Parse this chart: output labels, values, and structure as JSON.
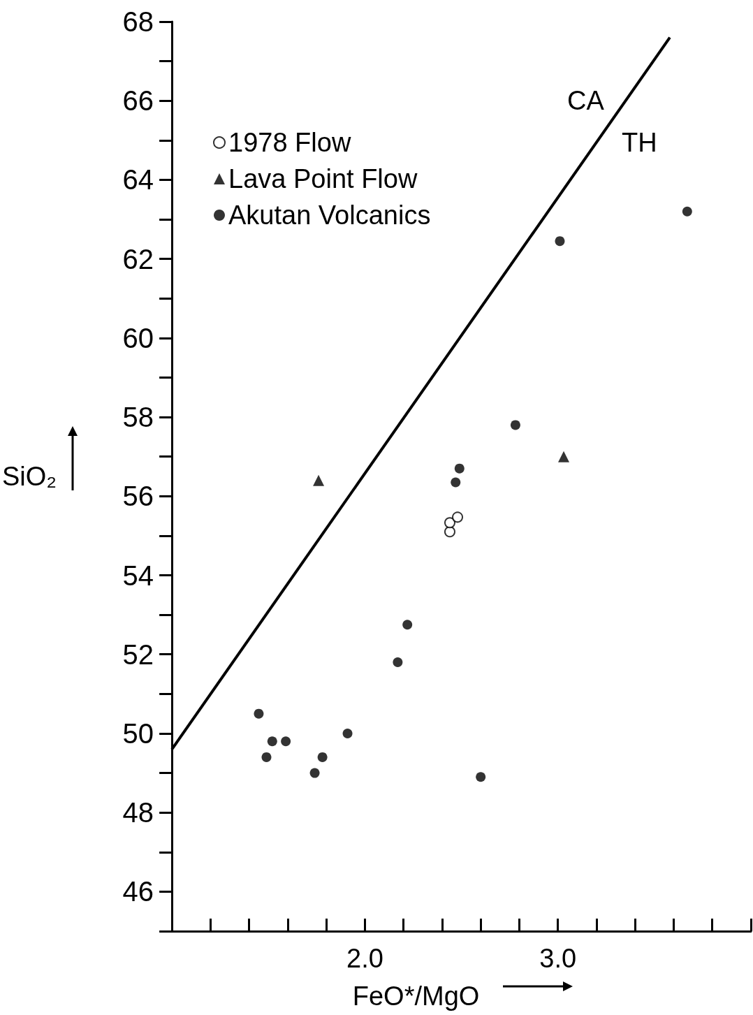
{
  "chart_data": {
    "type": "scatter",
    "xlabel": "FeO*/MgO",
    "ylabel": "SiO₂",
    "xlim": [
      1.0,
      4.0
    ],
    "ylim": [
      45,
      68
    ],
    "xticks": [
      {
        "value": 2.0,
        "label": "2.0"
      },
      {
        "value": 3.0,
        "label": "3.0"
      }
    ],
    "yticks": [
      46,
      48,
      50,
      52,
      54,
      56,
      58,
      60,
      62,
      64,
      66,
      68
    ],
    "grid": false,
    "legend": "top left",
    "series": [
      {
        "name": "1978 Flow",
        "marker": "circle",
        "color": "#ffffff",
        "x": [
          2.44,
          2.44,
          2.48
        ],
        "values": [
          55.1,
          55.33,
          55.47
        ]
      },
      {
        "name": "Lava Point Flow",
        "marker": "triangle",
        "color": "#000000",
        "x": [
          1.76,
          3.03
        ],
        "values": [
          56.4,
          57.0
        ]
      },
      {
        "name": "Akutan Volcanics",
        "marker": "circle",
        "color": "#000000",
        "x": [
          1.45,
          1.49,
          1.52,
          1.59,
          1.74,
          1.78,
          1.91,
          2.17,
          2.22,
          2.47,
          2.49,
          2.6,
          2.78,
          3.01,
          3.67
        ],
        "values": [
          50.5,
          49.4,
          49.8,
          49.8,
          49.0,
          49.4,
          50.0,
          51.8,
          52.75,
          56.35,
          56.7,
          48.9,
          57.8,
          62.45,
          63.2
        ]
      },
      {
        "type": "line",
        "marker": "none",
        "color": "#000000",
        "x": [
          1.0,
          3.58
        ],
        "values": [
          49.6,
          67.6
        ]
      }
    ],
    "annotations": [
      "CA",
      "TH"
    ]
  }
}
